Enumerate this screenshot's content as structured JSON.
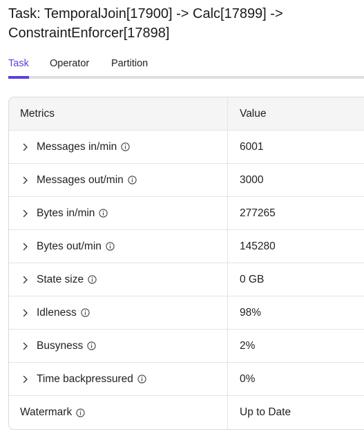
{
  "page": {
    "title": "Task: TemporalJoin[17900] -> Calc[17899] -> ConstraintEnforcer[17898]"
  },
  "tabs": [
    {
      "label": "Task",
      "active": true
    },
    {
      "label": "Operator",
      "active": false
    },
    {
      "label": "Partition",
      "active": false
    }
  ],
  "colors": {
    "accent": "#5b3fe4",
    "header_bg": "#f5f5f5",
    "border": "#d9d9d9"
  },
  "table": {
    "headers": {
      "metric": "Metrics",
      "value": "Value"
    },
    "rows": [
      {
        "label": "Messages in/min",
        "value": "6001",
        "expandable": true
      },
      {
        "label": "Messages out/min",
        "value": "3000",
        "expandable": true
      },
      {
        "label": "Bytes in/min",
        "value": "277265",
        "expandable": true
      },
      {
        "label": "Bytes out/min",
        "value": "145280",
        "expandable": true
      },
      {
        "label": "State size",
        "value": "0 GB",
        "expandable": true
      },
      {
        "label": "Idleness",
        "value": "98%",
        "expandable": true
      },
      {
        "label": "Busyness",
        "value": "2%",
        "expandable": true
      },
      {
        "label": "Time backpressured",
        "value": "0%",
        "expandable": true
      },
      {
        "label": "Watermark",
        "value": "Up to Date",
        "expandable": false
      }
    ]
  },
  "icons": {
    "expand": "chevron-right-icon",
    "info": "info-circle-icon"
  }
}
